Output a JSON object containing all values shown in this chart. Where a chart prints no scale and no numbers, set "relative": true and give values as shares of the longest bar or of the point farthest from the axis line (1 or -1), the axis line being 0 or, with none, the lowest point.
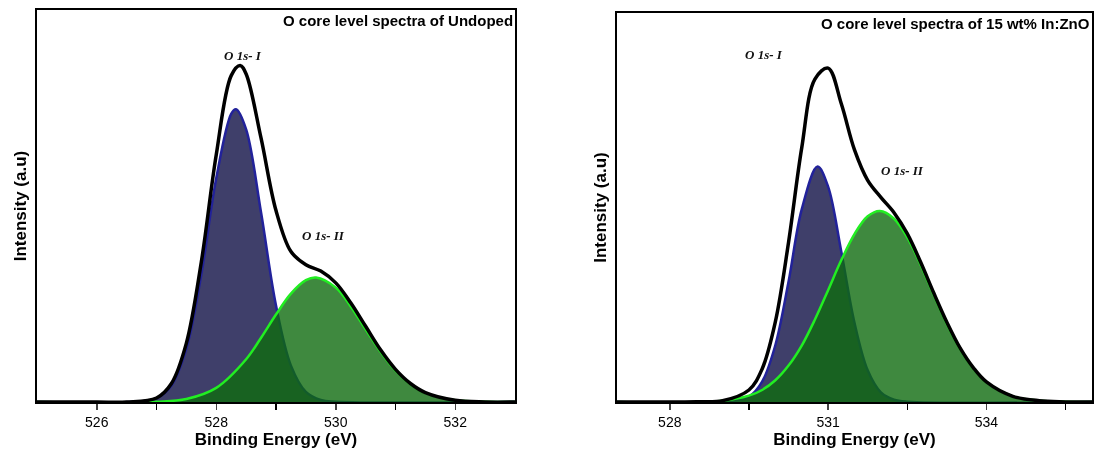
{
  "chart_data": [
    {
      "type": "area",
      "title": "O core level spectra of Undoped",
      "xlabel": "Binding Energy (eV)",
      "ylabel": "Intensity (a.u)",
      "relative": true,
      "xlim": [
        525,
        533
      ],
      "xticks": [
        526,
        {
          "value": 527,
          "label": null
        },
        528,
        {
          "value": 529,
          "label": null
        },
        530,
        {
          "value": 531,
          "label": null
        },
        532
      ],
      "annotations": [
        "O 1s- I",
        "O 1s- II"
      ],
      "series": [
        {
          "type": "area",
          "color": "#22229a",
          "x": [
            525,
            526.75,
            527,
            527.25,
            527.5,
            527.75,
            528,
            528.25,
            528.33,
            528.5,
            528.75,
            529,
            529.25,
            529.5,
            529.75,
            530,
            533
          ],
          "values": [
            0,
            0.002,
            0.011,
            0.049,
            0.159,
            0.379,
            0.665,
            0.856,
            0.87,
            0.81,
            0.563,
            0.287,
            0.108,
            0.03,
            0.006,
            0.001,
            0
          ]
        },
        {
          "type": "area",
          "color": "#22ee22",
          "x": [
            525,
            527,
            527.5,
            528,
            528.5,
            528.75,
            529,
            529.25,
            529.5,
            529.67,
            530,
            530.25,
            530.5,
            530.75,
            531,
            531.25,
            531.5,
            532,
            532.5,
            533
          ],
          "values": [
            0,
            0.001,
            0.009,
            0.042,
            0.127,
            0.191,
            0.26,
            0.322,
            0.362,
            0.37,
            0.34,
            0.284,
            0.216,
            0.149,
            0.093,
            0.053,
            0.027,
            0.005,
            0.001,
            0
          ]
        },
        {
          "type": "line",
          "color": "#000000",
          "x": [
            525,
            526,
            526.5,
            527,
            527.25,
            527.5,
            527.75,
            528,
            528.25,
            528.4,
            528.5,
            528.75,
            529,
            529.25,
            529.5,
            529.75,
            530,
            530.25,
            530.5,
            530.75,
            531,
            531.25,
            531.5,
            532,
            532.5,
            533
          ],
          "values": [
            0,
            0,
            0,
            0.012,
            0.055,
            0.175,
            0.416,
            0.735,
            0.97,
            1,
            0.975,
            0.784,
            0.569,
            0.447,
            0.408,
            0.389,
            0.354,
            0.295,
            0.225,
            0.155,
            0.097,
            0.055,
            0.028,
            0.005,
            0,
            0
          ]
        }
      ]
    },
    {
      "type": "area",
      "title": "O core level spectra of 15 wt% In:ZnO",
      "xlabel": "Binding Energy (eV)",
      "ylabel": "Intensity (a.u)",
      "relative": true,
      "xlim": [
        527,
        536
      ],
      "xticks": [
        528,
        {
          "value": 529.5,
          "label": null
        },
        531,
        {
          "value": 532.5,
          "label": null
        },
        534,
        {
          "value": 535.5,
          "label": null
        }
      ],
      "annotations": [
        "O 1s- I",
        "O 1s- II"
      ],
      "series": [
        {
          "type": "area",
          "color": "#22229a",
          "x": [
            527,
            529,
            529.5,
            529.75,
            530,
            530.25,
            530.5,
            530.8,
            531,
            531.25,
            531.5,
            531.75,
            532,
            532.25,
            532.5,
            536
          ],
          "values": [
            0,
            0,
            0.016,
            0.061,
            0.17,
            0.36,
            0.577,
            0.705,
            0.645,
            0.45,
            0.237,
            0.095,
            0.029,
            0.007,
            0.001,
            0
          ]
        },
        {
          "type": "area",
          "color": "#22ee22",
          "x": [
            527,
            529,
            529.5,
            529.75,
            530,
            530.25,
            530.5,
            530.75,
            531,
            531.25,
            531.5,
            531.75,
            531.98,
            532.25,
            532.5,
            532.75,
            533,
            533.25,
            533.5,
            533.75,
            534,
            534.5,
            535,
            535.5,
            536
          ],
          "values": [
            0,
            0.004,
            0.019,
            0.036,
            0.065,
            0.109,
            0.169,
            0.247,
            0.335,
            0.425,
            0.503,
            0.556,
            0.572,
            0.549,
            0.493,
            0.412,
            0.321,
            0.234,
            0.159,
            0.101,
            0.059,
            0.017,
            0.004,
            0.001,
            0
          ]
        },
        {
          "type": "line",
          "color": "#000000",
          "x": [
            527,
            528,
            528.5,
            529,
            529.5,
            529.75,
            530,
            530.25,
            530.5,
            530.75,
            531,
            531.25,
            531.5,
            531.75,
            532,
            532.25,
            532.5,
            532.75,
            533,
            533.25,
            533.5,
            533.75,
            534,
            534.5,
            535,
            536
          ],
          "values": [
            0,
            0,
            0.001,
            0.004,
            0.036,
            0.099,
            0.24,
            0.478,
            0.761,
            0.967,
            1,
            0.893,
            0.755,
            0.664,
            0.613,
            0.567,
            0.504,
            0.42,
            0.327,
            0.239,
            0.162,
            0.103,
            0.06,
            0.017,
            0.004,
            0
          ]
        }
      ]
    }
  ]
}
